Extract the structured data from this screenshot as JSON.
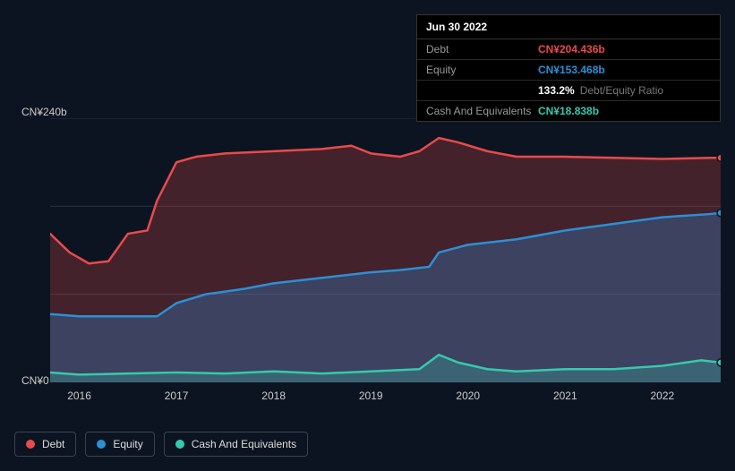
{
  "colors": {
    "background": "#0d1421",
    "debt": "#e84b4b",
    "equity": "#2d8fd6",
    "cash": "#36c9b0",
    "debt_fill": "rgba(232,75,75,0.25)",
    "equity_fill": "rgba(45,143,214,0.30)",
    "cash_fill": "rgba(54,201,176,0.25)",
    "grid": "#2a3140",
    "text": "#ffffff",
    "muted": "#999999"
  },
  "tooltip": {
    "date": "Jun 30 2022",
    "rows": [
      {
        "label": "Debt",
        "value": "CN¥204.436b",
        "colorKey": "debt"
      },
      {
        "label": "Equity",
        "value": "CN¥153.468b",
        "colorKey": "equity"
      },
      {
        "label": "",
        "value": "133.2%",
        "extra": "Debt/Equity Ratio",
        "colorKey": "text"
      },
      {
        "label": "Cash And Equivalents",
        "value": "CN¥18.838b",
        "colorKey": "cash"
      }
    ]
  },
  "chart": {
    "type": "area",
    "y_label_top": "CN¥240b",
    "y_label_bottom": "CN¥0",
    "y_min": 0,
    "y_max": 240,
    "x_min": 2015.7,
    "x_max": 2022.6,
    "x_ticks": [
      2016,
      2017,
      2018,
      2019,
      2020,
      2021,
      2022
    ],
    "gridlines_y": [
      0,
      80,
      160,
      240
    ],
    "line_width": 2.5,
    "series": [
      {
        "name": "Debt",
        "colorKey": "debt",
        "fillKey": "debt_fill",
        "points": [
          [
            2015.7,
            135
          ],
          [
            2015.9,
            118
          ],
          [
            2016.1,
            108
          ],
          [
            2016.3,
            110
          ],
          [
            2016.5,
            135
          ],
          [
            2016.7,
            138
          ],
          [
            2016.8,
            165
          ],
          [
            2017.0,
            200
          ],
          [
            2017.2,
            205
          ],
          [
            2017.5,
            208
          ],
          [
            2018.0,
            210
          ],
          [
            2018.5,
            212
          ],
          [
            2018.8,
            215
          ],
          [
            2019.0,
            208
          ],
          [
            2019.3,
            205
          ],
          [
            2019.5,
            210
          ],
          [
            2019.7,
            222
          ],
          [
            2019.9,
            218
          ],
          [
            2020.2,
            210
          ],
          [
            2020.5,
            205
          ],
          [
            2021.0,
            205
          ],
          [
            2021.5,
            204
          ],
          [
            2022.0,
            203
          ],
          [
            2022.5,
            204
          ],
          [
            2022.6,
            204
          ]
        ]
      },
      {
        "name": "Equity",
        "colorKey": "equity",
        "fillKey": "equity_fill",
        "points": [
          [
            2015.7,
            62
          ],
          [
            2016.0,
            60
          ],
          [
            2016.5,
            60
          ],
          [
            2016.8,
            60
          ],
          [
            2017.0,
            72
          ],
          [
            2017.3,
            80
          ],
          [
            2017.7,
            85
          ],
          [
            2018.0,
            90
          ],
          [
            2018.5,
            95
          ],
          [
            2019.0,
            100
          ],
          [
            2019.3,
            102
          ],
          [
            2019.6,
            105
          ],
          [
            2019.7,
            118
          ],
          [
            2020.0,
            125
          ],
          [
            2020.5,
            130
          ],
          [
            2021.0,
            138
          ],
          [
            2021.5,
            144
          ],
          [
            2022.0,
            150
          ],
          [
            2022.5,
            153
          ],
          [
            2022.6,
            154
          ]
        ]
      },
      {
        "name": "Cash And Equivalents",
        "colorKey": "cash",
        "fillKey": "cash_fill",
        "points": [
          [
            2015.7,
            9
          ],
          [
            2016.0,
            7
          ],
          [
            2016.5,
            8
          ],
          [
            2017.0,
            9
          ],
          [
            2017.5,
            8
          ],
          [
            2018.0,
            10
          ],
          [
            2018.5,
            8
          ],
          [
            2019.0,
            10
          ],
          [
            2019.5,
            12
          ],
          [
            2019.7,
            25
          ],
          [
            2019.9,
            18
          ],
          [
            2020.2,
            12
          ],
          [
            2020.5,
            10
          ],
          [
            2021.0,
            12
          ],
          [
            2021.5,
            12
          ],
          [
            2022.0,
            15
          ],
          [
            2022.4,
            20
          ],
          [
            2022.6,
            18
          ]
        ]
      }
    ]
  },
  "legend": [
    {
      "label": "Debt",
      "colorKey": "debt"
    },
    {
      "label": "Equity",
      "colorKey": "equity"
    },
    {
      "label": "Cash And Equivalents",
      "colorKey": "cash"
    }
  ]
}
